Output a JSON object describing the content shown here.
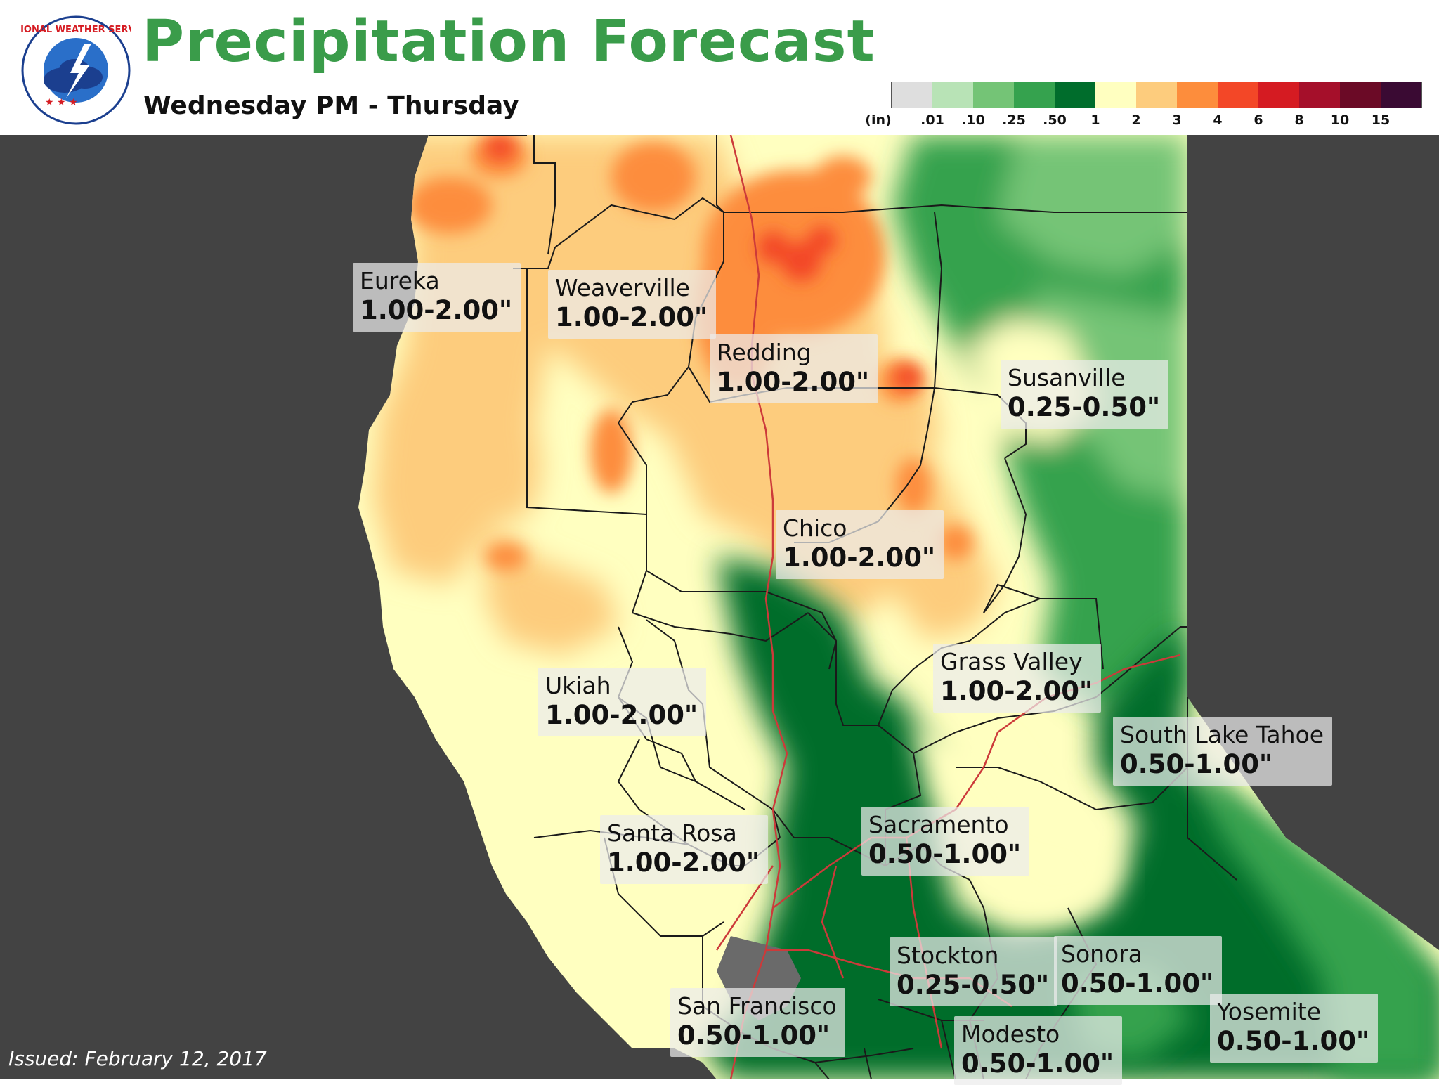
{
  "header": {
    "title": "Precipitation Forecast",
    "subtitle": "Wednesday PM - Thursday",
    "logo_text": "NATIONAL WEATHER SERVICE"
  },
  "legend": {
    "unit": "(in)",
    "colors": [
      "#dedede",
      "#b8e3b6",
      "#74c476",
      "#35a24e",
      "#006d2c",
      "#ffffc0",
      "#fdcc7d",
      "#fd8d3c",
      "#f34727",
      "#d51b22",
      "#a50f2a",
      "#6b0a26",
      "#3a0a33"
    ],
    "labels": [
      ".01",
      ".10",
      ".25",
      ".50",
      "1",
      "2",
      "3",
      "4",
      "6",
      "8",
      "10",
      "15"
    ]
  },
  "cities": [
    {
      "name": "Eureka",
      "range": "1.00-2.00\""
    },
    {
      "name": "Weaverville",
      "range": "1.00-2.00\""
    },
    {
      "name": "Redding",
      "range": "1.00-2.00\""
    },
    {
      "name": "Susanville",
      "range": "0.25-0.50\""
    },
    {
      "name": "Chico",
      "range": "1.00-2.00\""
    },
    {
      "name": "Grass Valley",
      "range": "1.00-2.00\""
    },
    {
      "name": "Ukiah",
      "range": "1.00-2.00\""
    },
    {
      "name": "South Lake Tahoe",
      "range": "0.50-1.00\""
    },
    {
      "name": "Sacramento",
      "range": "0.50-1.00\""
    },
    {
      "name": "Santa Rosa",
      "range": "1.00-2.00\""
    },
    {
      "name": "Stockton",
      "range": "0.25-0.50\""
    },
    {
      "name": "Sonora",
      "range": "0.50-1.00\""
    },
    {
      "name": "San Francisco",
      "range": "0.50-1.00\""
    },
    {
      "name": "Modesto",
      "range": "0.50-1.00\""
    },
    {
      "name": "Yosemite",
      "range": "0.50-1.00\""
    }
  ],
  "issued": "Issued: February 12, 2017"
}
